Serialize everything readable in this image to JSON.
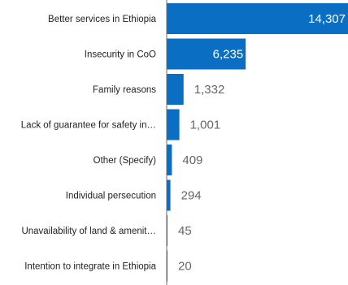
{
  "chart_data": {
    "type": "bar",
    "orientation": "horizontal",
    "categories": [
      "Better services in Ethiopia",
      "Insecurity in CoO",
      "Family reasons",
      "Lack of guarantee for safety in…",
      "Other (Specify)",
      "Individual persecution",
      "Unavailability of land & amenit…",
      "Intention to integrate in Ethiopia"
    ],
    "values": [
      14307,
      6235,
      1332,
      1001,
      409,
      294,
      45,
      20
    ],
    "value_labels": [
      "14,307",
      "6,235",
      "1,332",
      "1,001",
      "409",
      "294",
      "45",
      "20"
    ],
    "xlim": [
      0,
      14307
    ],
    "bar_color": "#0a6fc2",
    "axis_color": "#6b6b6b",
    "grid": false,
    "legend": "none"
  }
}
